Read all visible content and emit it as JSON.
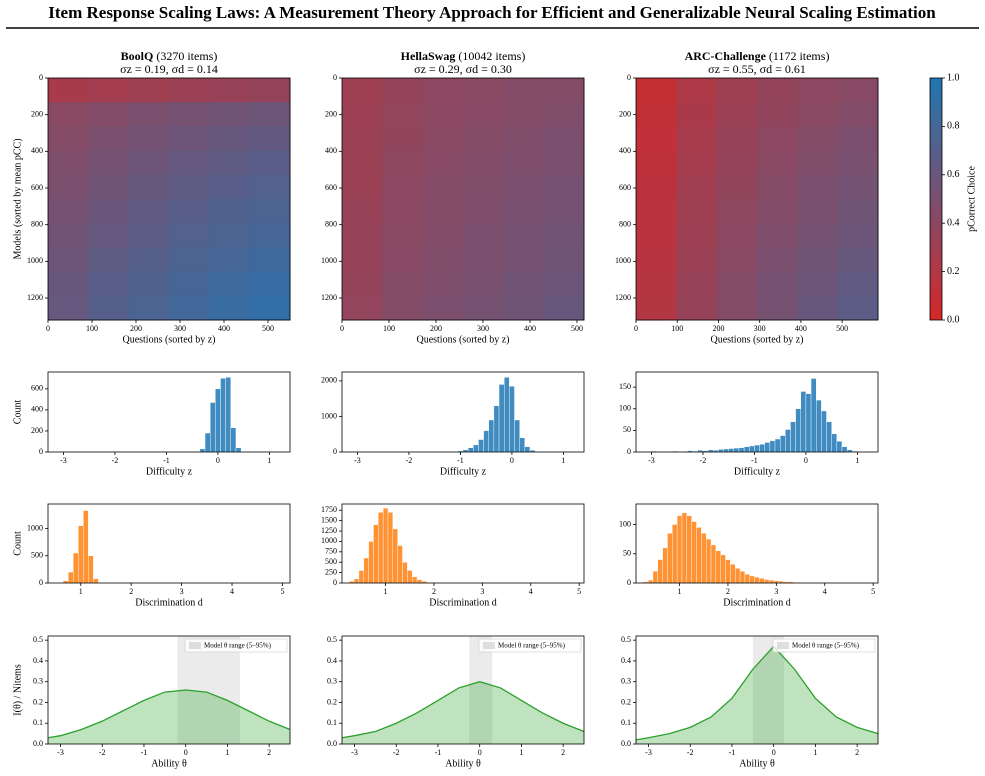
{
  "title": "Item Response Scaling Laws: A Measurement Theory Approach for Efficient and Generalizable Neural Scaling Estimation",
  "chart_data": [
    {
      "type": "heatmap",
      "title": "BoolQ",
      "title_note": "(3270 items)",
      "subtitle": "σz = 0.19, σd = 0.14",
      "xlabel": "Questions (sorted by z)",
      "ylabel": "Models (sorted by mean pCC)",
      "xlim": [
        0,
        550
      ],
      "xticks": [
        0,
        100,
        200,
        300,
        400,
        500
      ],
      "ylim": [
        1320,
        0
      ],
      "yticks": [
        0,
        200,
        400,
        600,
        800,
        1000,
        1200
      ],
      "values": [
        [
          0.25,
          0.28,
          0.3,
          0.32,
          0.34,
          0.36
        ],
        [
          0.42,
          0.46,
          0.5,
          0.53,
          0.56,
          0.58
        ],
        [
          0.45,
          0.5,
          0.54,
          0.58,
          0.61,
          0.63
        ],
        [
          0.48,
          0.53,
          0.58,
          0.62,
          0.65,
          0.68
        ],
        [
          0.5,
          0.56,
          0.61,
          0.65,
          0.69,
          0.72
        ],
        [
          0.52,
          0.59,
          0.64,
          0.69,
          0.73,
          0.76
        ],
        [
          0.55,
          0.62,
          0.67,
          0.72,
          0.76,
          0.79
        ],
        [
          0.58,
          0.65,
          0.7,
          0.75,
          0.79,
          0.83
        ],
        [
          0.6,
          0.68,
          0.73,
          0.78,
          0.83,
          0.87
        ],
        [
          0.62,
          0.7,
          0.76,
          0.81,
          0.86,
          0.9
        ]
      ]
    },
    {
      "type": "heatmap",
      "title": "HellaSwag",
      "title_note": "(10042 items)",
      "subtitle": "σz = 0.29, σd = 0.30",
      "xlabel": "Questions (sorted by z)",
      "xlim": [
        0,
        515
      ],
      "xticks": [
        0,
        100,
        200,
        300,
        400,
        500
      ],
      "ylim": [
        1320,
        0
      ],
      "yticks": [
        0,
        200,
        400,
        600,
        800,
        1000,
        1200
      ],
      "values": [
        [
          0.3,
          0.36,
          0.4,
          0.42,
          0.44,
          0.45
        ],
        [
          0.31,
          0.37,
          0.41,
          0.43,
          0.45,
          0.47
        ],
        [
          0.32,
          0.38,
          0.42,
          0.45,
          0.47,
          0.49
        ],
        [
          0.33,
          0.39,
          0.43,
          0.46,
          0.48,
          0.5
        ],
        [
          0.33,
          0.4,
          0.44,
          0.47,
          0.5,
          0.52
        ],
        [
          0.34,
          0.41,
          0.45,
          0.48,
          0.51,
          0.53
        ],
        [
          0.35,
          0.42,
          0.46,
          0.49,
          0.52,
          0.55
        ],
        [
          0.35,
          0.43,
          0.47,
          0.5,
          0.53,
          0.56
        ],
        [
          0.36,
          0.44,
          0.48,
          0.51,
          0.55,
          0.58
        ],
        [
          0.37,
          0.45,
          0.49,
          0.53,
          0.56,
          0.6
        ]
      ]
    },
    {
      "type": "heatmap",
      "title": "ARC-Challenge",
      "title_note": "(1172 items)",
      "subtitle": "σz = 0.55, σd = 0.61",
      "xlabel": "Questions (sorted by z)",
      "xlim": [
        0,
        587
      ],
      "xticks": [
        0,
        100,
        200,
        300,
        400,
        500
      ],
      "ylim": [
        1320,
        0
      ],
      "yticks": [
        0,
        200,
        400,
        600,
        800,
        1000,
        1200
      ],
      "values": [
        [
          0.1,
          0.22,
          0.3,
          0.36,
          0.4,
          0.43
        ],
        [
          0.11,
          0.24,
          0.32,
          0.38,
          0.42,
          0.46
        ],
        [
          0.12,
          0.26,
          0.34,
          0.4,
          0.45,
          0.49
        ],
        [
          0.13,
          0.27,
          0.36,
          0.42,
          0.47,
          0.51
        ],
        [
          0.14,
          0.29,
          0.38,
          0.44,
          0.49,
          0.54
        ],
        [
          0.15,
          0.3,
          0.39,
          0.46,
          0.51,
          0.56
        ],
        [
          0.16,
          0.31,
          0.41,
          0.48,
          0.53,
          0.58
        ],
        [
          0.17,
          0.33,
          0.42,
          0.5,
          0.56,
          0.61
        ],
        [
          0.18,
          0.34,
          0.44,
          0.52,
          0.58,
          0.64
        ],
        [
          0.19,
          0.35,
          0.45,
          0.53,
          0.6,
          0.67
        ]
      ]
    },
    {
      "type": "histogram",
      "xlabel": "Difficulty z",
      "ylabel": "Count",
      "color": "#1f77b4",
      "xlim": [
        -3.3,
        1.4
      ],
      "xticks": [
        -3,
        -2,
        -1,
        0,
        1
      ],
      "ylim": [
        0,
        760
      ],
      "yticks": [
        0,
        200,
        400,
        600
      ],
      "bins": [
        -0.35,
        -0.25,
        -0.15,
        -0.05,
        0.05,
        0.15,
        0.25,
        0.35,
        0.45
      ],
      "values": [
        30,
        180,
        470,
        600,
        700,
        710,
        230,
        40
      ]
    },
    {
      "type": "histogram",
      "xlabel": "Difficulty z",
      "color": "#1f77b4",
      "xlim": [
        -3.3,
        1.4
      ],
      "xticks": [
        -3,
        -2,
        -1,
        0,
        1
      ],
      "ylim": [
        0,
        2250
      ],
      "yticks": [
        0,
        1000,
        2000
      ],
      "bins": [
        -1.15,
        -1.05,
        -0.95,
        -0.85,
        -0.75,
        -0.65,
        -0.55,
        -0.45,
        -0.35,
        -0.25,
        -0.15,
        -0.05,
        0.05,
        0.15,
        0.25,
        0.35,
        0.45,
        0.55
      ],
      "values": [
        10,
        30,
        60,
        120,
        200,
        350,
        600,
        900,
        1300,
        1900,
        2100,
        1850,
        900,
        400,
        150,
        50,
        10
      ]
    },
    {
      "type": "histogram",
      "xlabel": "Difficulty z",
      "color": "#1f77b4",
      "xlim": [
        -3.3,
        1.4
      ],
      "xticks": [
        -3,
        -2,
        -1,
        0,
        1
      ],
      "ylim": [
        0,
        185
      ],
      "yticks": [
        0,
        50,
        100,
        150
      ],
      "bins": [
        -3.0,
        -2.9,
        -2.8,
        -2.7,
        -2.6,
        -2.5,
        -2.4,
        -2.3,
        -2.2,
        -2.1,
        -2.0,
        -1.9,
        -1.8,
        -1.7,
        -1.6,
        -1.5,
        -1.4,
        -1.3,
        -1.2,
        -1.1,
        -1.0,
        -0.9,
        -0.8,
        -0.7,
        -0.6,
        -0.5,
        -0.4,
        -0.3,
        -0.2,
        -0.1,
        0.0,
        0.1,
        0.2,
        0.3,
        0.4,
        0.5,
        0.6,
        0.7,
        0.8,
        0.9,
        1.0
      ],
      "values": [
        2,
        0,
        1,
        0,
        2,
        0,
        1,
        3,
        2,
        4,
        3,
        5,
        4,
        6,
        7,
        8,
        9,
        10,
        12,
        14,
        16,
        18,
        22,
        26,
        30,
        38,
        52,
        70,
        100,
        140,
        135,
        170,
        120,
        95,
        70,
        42,
        25,
        12,
        5,
        2
      ]
    },
    {
      "type": "histogram",
      "xlabel": "Discrimination d",
      "ylabel": "Count",
      "color": "#ff7f0e",
      "xlim": [
        0.35,
        5.15
      ],
      "xticks": [
        1,
        2,
        3,
        4,
        5
      ],
      "ylim": [
        0,
        1450
      ],
      "yticks": [
        0,
        500,
        1000
      ],
      "bins": [
        0.65,
        0.75,
        0.85,
        0.95,
        1.05,
        1.15,
        1.25,
        1.35
      ],
      "values": [
        40,
        200,
        550,
        1050,
        1330,
        500,
        80
      ]
    },
    {
      "type": "histogram",
      "xlabel": "Discrimination d",
      "color": "#ff7f0e",
      "xlim": [
        0.1,
        5.1
      ],
      "xticks": [
        1,
        2,
        3,
        4,
        5
      ],
      "ylim": [
        0,
        1900
      ],
      "yticks": [
        0,
        250,
        500,
        750,
        1000,
        1250,
        1500,
        1750
      ],
      "bins": [
        0.25,
        0.35,
        0.45,
        0.55,
        0.65,
        0.75,
        0.85,
        0.95,
        1.05,
        1.15,
        1.25,
        1.35,
        1.45,
        1.55,
        1.65,
        1.75,
        1.85,
        1.95,
        2.05
      ],
      "values": [
        40,
        100,
        300,
        600,
        1000,
        1400,
        1700,
        1800,
        1700,
        1300,
        900,
        500,
        300,
        150,
        80,
        40,
        15,
        5
      ]
    },
    {
      "type": "histogram",
      "xlabel": "Discrimination d",
      "color": "#ff7f0e",
      "xlim": [
        0.1,
        5.1
      ],
      "xticks": [
        1,
        2,
        3,
        4,
        5
      ],
      "ylim": [
        0,
        135
      ],
      "yticks": [
        0,
        50,
        100
      ],
      "bins": [
        0.25,
        0.35,
        0.45,
        0.55,
        0.65,
        0.75,
        0.85,
        0.95,
        1.05,
        1.15,
        1.25,
        1.35,
        1.45,
        1.55,
        1.65,
        1.75,
        1.85,
        1.95,
        2.05,
        2.15,
        2.25,
        2.35,
        2.45,
        2.55,
        2.65,
        2.75,
        2.85,
        2.95,
        3.05,
        3.15,
        3.25,
        3.35,
        3.45,
        3.55
      ],
      "values": [
        2,
        5,
        20,
        40,
        60,
        85,
        100,
        115,
        120,
        115,
        105,
        95,
        85,
        75,
        65,
        55,
        48,
        40,
        32,
        25,
        20,
        15,
        12,
        10,
        8,
        6,
        5,
        4,
        3,
        2,
        2,
        1,
        1
      ]
    },
    {
      "type": "area",
      "xlabel": "Ability θ",
      "ylabel": "I(θ) / Nitems",
      "color": "#2ca02c",
      "band": [
        -0.2,
        1.3
      ],
      "band_label": "Model θ range (5–95%)",
      "xlim": [
        -3.3,
        2.5
      ],
      "xticks": [
        -3,
        -2,
        -1,
        0,
        1,
        2
      ],
      "ylim": [
        0,
        0.52
      ],
      "yticks": [
        {
          "value": 0,
          "label": "0.0"
        },
        0.1,
        0.2,
        0.3,
        0.4,
        0.5
      ],
      "x": [
        -3.3,
        -3,
        -2.5,
        -2,
        -1.5,
        -1,
        -0.5,
        0,
        0.5,
        1,
        1.5,
        2,
        2.5
      ],
      "values": [
        0.03,
        0.04,
        0.07,
        0.11,
        0.16,
        0.21,
        0.25,
        0.26,
        0.25,
        0.21,
        0.16,
        0.11,
        0.07
      ]
    },
    {
      "type": "area",
      "xlabel": "Ability θ",
      "color": "#2ca02c",
      "band": [
        -0.25,
        0.3
      ],
      "band_label": "Model θ range (5–95%)",
      "xlim": [
        -3.3,
        2.5
      ],
      "xticks": [
        -3,
        -2,
        -1,
        0,
        1,
        2
      ],
      "ylim": [
        0,
        0.52
      ],
      "yticks": [
        {
          "value": 0,
          "label": "0.0"
        },
        0.1,
        0.2,
        0.3,
        0.4,
        0.5
      ],
      "x": [
        -3.3,
        -3,
        -2.5,
        -2,
        -1.5,
        -1,
        -0.5,
        0,
        0.5,
        1,
        1.5,
        2,
        2.5
      ],
      "values": [
        0.03,
        0.04,
        0.06,
        0.1,
        0.15,
        0.21,
        0.27,
        0.3,
        0.27,
        0.21,
        0.15,
        0.1,
        0.06
      ]
    },
    {
      "type": "area",
      "xlabel": "Ability θ",
      "color": "#2ca02c",
      "band": [
        -0.5,
        0.25
      ],
      "band_label": "Model θ range (5–95%)",
      "xlim": [
        -3.3,
        2.5
      ],
      "xticks": [
        -3,
        -2,
        -1,
        0,
        1,
        2
      ],
      "ylim": [
        0,
        0.52
      ],
      "yticks": [
        {
          "value": 0,
          "label": "0.0"
        },
        0.1,
        0.2,
        0.3,
        0.4,
        0.5
      ],
      "x": [
        -3.3,
        -3,
        -2.5,
        -2,
        -1.5,
        -1,
        -0.5,
        0,
        0.5,
        1,
        1.5,
        2,
        2.5
      ],
      "values": [
        0.02,
        0.03,
        0.05,
        0.08,
        0.13,
        0.22,
        0.36,
        0.47,
        0.36,
        0.22,
        0.13,
        0.08,
        0.05
      ]
    },
    {
      "type": "colorbar",
      "label": "pCorrect Choice",
      "colors": [
        "#d62728",
        "#1f77b4"
      ],
      "ylim": [
        0,
        1
      ],
      "yticks": [
        {
          "value": 0,
          "label": "0.0"
        },
        0.2,
        0.4,
        0.6,
        0.8,
        {
          "value": 1,
          "label": "1.0"
        }
      ]
    }
  ]
}
